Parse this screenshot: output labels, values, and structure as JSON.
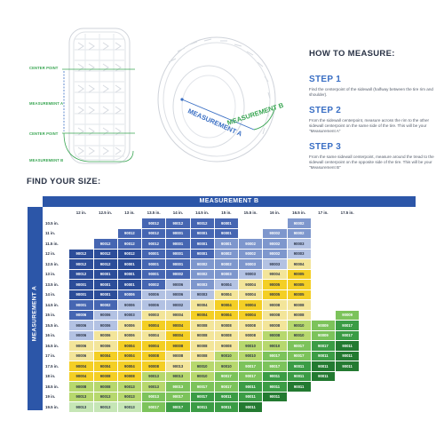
{
  "colors": {
    "blue_dark": "#2c4d99",
    "blue": "#4666b2",
    "blue_mid": "#7e97cd",
    "blue_light": "#b3c2e3",
    "yellow_light": "#f3e59a",
    "yellow": "#f4cf25",
    "green_light": "#b7d86e",
    "green": "#7cc35b",
    "green_mid": "#3b9c45",
    "green_dark": "#237a31",
    "header_blue": "#2c56a8"
  },
  "diagram": {
    "labels": {
      "center_point_top": "CENTER POINT",
      "measurement_a_side": "MEASUREMENT A",
      "center_point_bottom": "CENTER POINT",
      "measurement_b_side": "MEASUREMENT B",
      "measurement_a_angled": "MEASUREMENT A",
      "measurement_b_angled": "MEASUREMENT B"
    },
    "icons": [
      "front-tire-icon",
      "angled-tire-icon"
    ]
  },
  "howto": {
    "title": "HOW TO MEASURE:",
    "steps": [
      {
        "title": "STEP 1",
        "text": "Find the centerpoint of the sidewall (halfway between the tire rim and shoulder)."
      },
      {
        "title": "STEP 2",
        "text": "From the sidewall centerpoint, measure across the rim to the other sidewall centerpoint on the same side of the tire. This will be your \"Measurement A\""
      },
      {
        "title": "STEP 3",
        "text": "From the same sidewall centerpoint, measure around the tread to the sidewall centerpoint on the opposite side of the tire. This will be your \"Measurement B\""
      }
    ]
  },
  "find_title": "FIND YOUR SIZE:",
  "table": {
    "measurement_b_label": "MEASUREMENT B",
    "measurement_a_label": "MEASUREMENT A",
    "columns": [
      "12 in.",
      "12.5 in.",
      "13 in.",
      "13.5 in.",
      "14 in.",
      "14.5 in.",
      "15 in.",
      "15.5 in.",
      "16 in.",
      "16.5 in.",
      "17 in.",
      "17.5 in."
    ],
    "rows": [
      {
        "label": "10.5 in.",
        "cells": [
          [
            "",
            0
          ],
          [
            "",
            0
          ],
          [
            "",
            0
          ],
          [
            "90012",
            2
          ],
          [
            "90012",
            2
          ],
          [
            "90012",
            2
          ],
          [
            "90001",
            2
          ],
          [
            "",
            0
          ],
          [
            "",
            0
          ],
          [
            "90002",
            3
          ],
          [
            "",
            0
          ],
          [
            "",
            0
          ]
        ]
      },
      {
        "label": "11 in.",
        "cells": [
          [
            "",
            0
          ],
          [
            "",
            0
          ],
          [
            "90012",
            2
          ],
          [
            "90012",
            2
          ],
          [
            "90001",
            2
          ],
          [
            "90001",
            2
          ],
          [
            "90001",
            2
          ],
          [
            "",
            0
          ],
          [
            "90002",
            3
          ],
          [
            "90002",
            3
          ],
          [
            "",
            0
          ],
          [
            "",
            0
          ]
        ]
      },
      {
        "label": "11.5 in.",
        "cells": [
          [
            "",
            0
          ],
          [
            "90012",
            2
          ],
          [
            "90012",
            2
          ],
          [
            "90012",
            2
          ],
          [
            "90001",
            2
          ],
          [
            "90001",
            2
          ],
          [
            "90001",
            3
          ],
          [
            "90002",
            3
          ],
          [
            "90002",
            3
          ],
          [
            "90003",
            4
          ],
          [
            "",
            0
          ],
          [
            "",
            0
          ]
        ]
      },
      {
        "label": "12 in.",
        "cells": [
          [
            "90012",
            1
          ],
          [
            "90012",
            1
          ],
          [
            "90012",
            1
          ],
          [
            "90001",
            2
          ],
          [
            "90001",
            2
          ],
          [
            "90001",
            2
          ],
          [
            "90002",
            3
          ],
          [
            "90002",
            3
          ],
          [
            "90002",
            3
          ],
          [
            "90003",
            4
          ],
          [
            "",
            0
          ],
          [
            "",
            0
          ]
        ]
      },
      {
        "label": "12.5 in.",
        "cells": [
          [
            "90012",
            1
          ],
          [
            "90012",
            1
          ],
          [
            "90001",
            1
          ],
          [
            "90001",
            2
          ],
          [
            "90001",
            2
          ],
          [
            "90002",
            3
          ],
          [
            "90002",
            3
          ],
          [
            "90003",
            3
          ],
          [
            "90003",
            4
          ],
          [
            "90004",
            5
          ],
          [
            "",
            0
          ],
          [
            "",
            0
          ]
        ]
      },
      {
        "label": "13 in.",
        "cells": [
          [
            "90012",
            1
          ],
          [
            "90001",
            1
          ],
          [
            "90001",
            1
          ],
          [
            "90001",
            2
          ],
          [
            "90002",
            2
          ],
          [
            "90002",
            3
          ],
          [
            "90003",
            3
          ],
          [
            "90003",
            4
          ],
          [
            "90004",
            5
          ],
          [
            "90005",
            6
          ],
          [
            "",
            0
          ],
          [
            "",
            0
          ]
        ]
      },
      {
        "label": "13.5 in.",
        "cells": [
          [
            "90001",
            1
          ],
          [
            "90001",
            1
          ],
          [
            "90001",
            1
          ],
          [
            "90002",
            2
          ],
          [
            "90006",
            4
          ],
          [
            "90003",
            3
          ],
          [
            "90004",
            4
          ],
          [
            "90004",
            5
          ],
          [
            "90005",
            6
          ],
          [
            "90005",
            6
          ],
          [
            "",
            0
          ],
          [
            "",
            0
          ]
        ]
      },
      {
        "label": "14 in.",
        "cells": [
          [
            "90001",
            1
          ],
          [
            "90001",
            1
          ],
          [
            "90006",
            2
          ],
          [
            "90006",
            4
          ],
          [
            "90006",
            4
          ],
          [
            "90003",
            4
          ],
          [
            "90004",
            5
          ],
          [
            "90004",
            5
          ],
          [
            "90005",
            6
          ],
          [
            "90005",
            6
          ],
          [
            "",
            0
          ],
          [
            "",
            0
          ]
        ]
      },
      {
        "label": "14.5 in.",
        "cells": [
          [
            "90001",
            2
          ],
          [
            "90002",
            2
          ],
          [
            "90006",
            4
          ],
          [
            "90006",
            4
          ],
          [
            "90002",
            4
          ],
          [
            "90004",
            5
          ],
          [
            "90004",
            6
          ],
          [
            "90004",
            6
          ],
          [
            "90008",
            5
          ],
          [
            "90008",
            5
          ],
          [
            "",
            0
          ],
          [
            "",
            0
          ]
        ]
      },
      {
        "label": "15 in.",
        "cells": [
          [
            "90006",
            2
          ],
          [
            "90006",
            4
          ],
          [
            "90003",
            4
          ],
          [
            "90003",
            5
          ],
          [
            "90004",
            5
          ],
          [
            "90004",
            6
          ],
          [
            "90004",
            6
          ],
          [
            "90004",
            6
          ],
          [
            "90008",
            5
          ],
          [
            "90008",
            5
          ],
          [
            "",
            0
          ],
          [
            "90009",
            8
          ]
        ]
      },
      {
        "label": "15.5 in.",
        "cells": [
          [
            "90006",
            4
          ],
          [
            "90006",
            4
          ],
          [
            "90006",
            5
          ],
          [
            "90004",
            6
          ],
          [
            "90004",
            6
          ],
          [
            "90008",
            5
          ],
          [
            "90008",
            5
          ],
          [
            "90008",
            5
          ],
          [
            "90008",
            5
          ],
          [
            "90010",
            7
          ],
          [
            "90009",
            8
          ],
          [
            "90017",
            9
          ]
        ]
      },
      {
        "label": "16 in.",
        "cells": [
          [
            "90006",
            4
          ],
          [
            "90006",
            5
          ],
          [
            "90006",
            5
          ],
          [
            "90004",
            5
          ],
          [
            "90004",
            6
          ],
          [
            "90008",
            5
          ],
          [
            "90008",
            5
          ],
          [
            "90008",
            5
          ],
          [
            "90008",
            7
          ],
          [
            "90010",
            7
          ],
          [
            "90009",
            8
          ],
          [
            "90017",
            9
          ]
        ]
      },
      {
        "label": "16.5 in.",
        "cells": [
          [
            "90006",
            5
          ],
          [
            "90006",
            5
          ],
          [
            "90004",
            6
          ],
          [
            "90004",
            6
          ],
          [
            "90008",
            6
          ],
          [
            "90008",
            5
          ],
          [
            "90008",
            5
          ],
          [
            "90010",
            7
          ],
          [
            "90010",
            7
          ],
          [
            "90017",
            8
          ],
          [
            "90017",
            9
          ],
          [
            "90011",
            10
          ]
        ]
      },
      {
        "label": "17 in.",
        "cells": [
          [
            "90006",
            5
          ],
          [
            "90004",
            6
          ],
          [
            "90004",
            6
          ],
          [
            "90008",
            6
          ],
          [
            "90008",
            5
          ],
          [
            "90008",
            5
          ],
          [
            "90010",
            7
          ],
          [
            "90010",
            7
          ],
          [
            "90017",
            8
          ],
          [
            "90017",
            8
          ],
          [
            "90011",
            9
          ],
          [
            "90011",
            10
          ]
        ]
      },
      {
        "label": "17.5 in.",
        "cells": [
          [
            "90004",
            6
          ],
          [
            "90004",
            6
          ],
          [
            "90004",
            6
          ],
          [
            "90008",
            6
          ],
          [
            "90013",
            5
          ],
          [
            "90010",
            7
          ],
          [
            "90010",
            7
          ],
          [
            "90017",
            8
          ],
          [
            "90017",
            8
          ],
          [
            "90011",
            9
          ],
          [
            "90011",
            10
          ],
          [
            "90011",
            10
          ]
        ]
      },
      {
        "label": "18 in.",
        "cells": [
          [
            "90004",
            6
          ],
          [
            "90008",
            6
          ],
          [
            "90008",
            6
          ],
          [
            "90013",
            7
          ],
          [
            "90013",
            7
          ],
          [
            "90010",
            7
          ],
          [
            "90017",
            8
          ],
          [
            "90017",
            8
          ],
          [
            "90011",
            9
          ],
          [
            "90011",
            9
          ],
          [
            "90011",
            10
          ],
          [
            "",
            0
          ]
        ]
      },
      {
        "label": "18.5 in.",
        "cells": [
          [
            "90008",
            7
          ],
          [
            "90008",
            7
          ],
          [
            "90013",
            7
          ],
          [
            "90013",
            7
          ],
          [
            "90013",
            8
          ],
          [
            "90017",
            8
          ],
          [
            "90017",
            8
          ],
          [
            "90011",
            9
          ],
          [
            "90011",
            9
          ],
          [
            "90011",
            10
          ],
          [
            "",
            0
          ],
          [
            "",
            0
          ]
        ]
      },
      {
        "label": "19 in.",
        "cells": [
          [
            "90013",
            7
          ],
          [
            "90013",
            7
          ],
          [
            "90013",
            7
          ],
          [
            "90013",
            8
          ],
          [
            "90017",
            8
          ],
          [
            "90017",
            9
          ],
          [
            "90011",
            9
          ],
          [
            "90011",
            9
          ],
          [
            "90011",
            10
          ],
          [
            "",
            0
          ],
          [
            "",
            0
          ],
          [
            "",
            0
          ]
        ]
      },
      {
        "label": "19.5 in.",
        "cells": [
          [
            "90013",
            11
          ],
          [
            "90013",
            11
          ],
          [
            "90013",
            11
          ],
          [
            "90017",
            8
          ],
          [
            "90017",
            9
          ],
          [
            "90011",
            9
          ],
          [
            "90011",
            9
          ],
          [
            "90011",
            10
          ],
          [
            "",
            0
          ],
          [
            "",
            0
          ],
          [
            "",
            0
          ],
          [
            "",
            0
          ]
        ]
      }
    ]
  }
}
